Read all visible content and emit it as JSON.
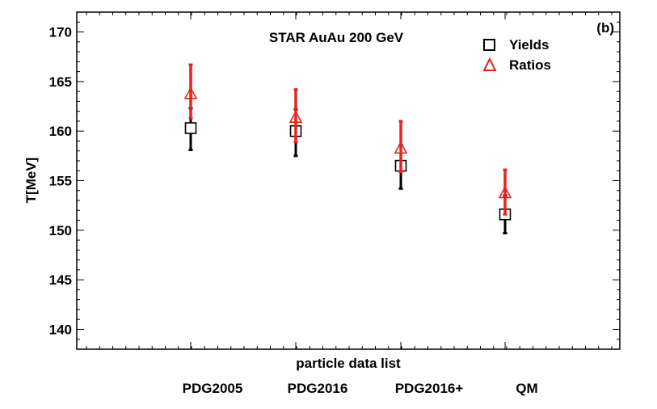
{
  "chart_data": {
    "type": "scatter",
    "title": "",
    "annotation": "STAR AuAu 200 GeV",
    "panel_label": "(b)",
    "xlabel": "particle data list",
    "ylabel": "T[MeV]",
    "categories": [
      "PDG2005",
      "PDG2016",
      "PDG2016+",
      "QM"
    ],
    "ylim": [
      138,
      172
    ],
    "yticks": [
      140,
      145,
      150,
      155,
      160,
      165,
      170
    ],
    "grid": false,
    "legend": "top-right",
    "series": [
      {
        "name": "Yields",
        "marker": "square",
        "color": "#000000",
        "values": [
          160.3,
          160.0,
          156.5,
          151.6
        ],
        "err_low": [
          158.1,
          157.5,
          154.2,
          149.7
        ],
        "err_high": [
          162.3,
          162.2,
          158.6,
          153.5
        ]
      },
      {
        "name": "Ratios",
        "marker": "triangle",
        "color": "#e8221c",
        "values": [
          163.7,
          161.3,
          158.2,
          153.7
        ],
        "err_low": [
          161.3,
          158.9,
          155.9,
          151.6
        ],
        "err_high": [
          166.7,
          164.2,
          161.0,
          156.1
        ]
      }
    ]
  }
}
